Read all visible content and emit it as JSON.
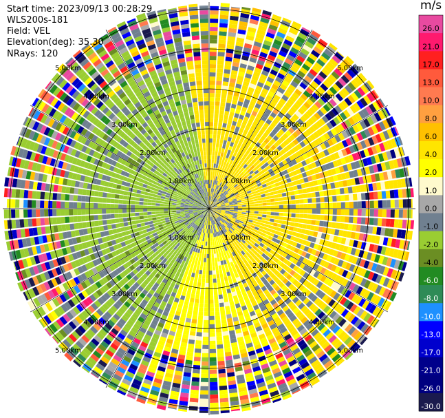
{
  "header": {
    "start_time": "Start time: 2023/09/13 00:28:29",
    "instrument": "WLS200s-181",
    "field": "Field: VEL",
    "elevation": "Elevation(deg): 35.30",
    "nrays": "NRays: 120"
  },
  "ppi": {
    "nrays": 120,
    "range_ring_labels": [
      "1.00km",
      "2.00km",
      "3.00km",
      "4.00km",
      "5.00km"
    ]
  },
  "colorbar": {
    "unit": "m/s",
    "levels": [
      {
        "label": "26.0",
        "color": "#e84aa0"
      },
      {
        "label": "21.0",
        "color": "#ff1a6e"
      },
      {
        "label": "17.0",
        "color": "#ff2020"
      },
      {
        "label": "13.0",
        "color": "#ff5a3c"
      },
      {
        "label": "10.0",
        "color": "#ff7a50"
      },
      {
        "label": "8.0",
        "color": "#ffa040"
      },
      {
        "label": "6.0",
        "color": "#ffc000"
      },
      {
        "label": "4.0",
        "color": "#ffe500"
      },
      {
        "label": "2.0",
        "color": "#ffff00"
      },
      {
        "label": "1.0",
        "color": "#fffacd"
      },
      {
        "label": "0.0",
        "color": "#a8a8a8"
      },
      {
        "label": "-1.0",
        "color": "#708090"
      },
      {
        "label": "-2.0",
        "color": "#9acd32"
      },
      {
        "label": "-4.0",
        "color": "#6b8e23"
      },
      {
        "label": "-6.0",
        "color": "#228b22"
      },
      {
        "label": "-8.0",
        "color": "#2e8b57"
      },
      {
        "label": "-10.0",
        "color": "#1e90ff"
      },
      {
        "label": "-13.0",
        "color": "#0000ff"
      },
      {
        "label": "-17.0",
        "color": "#0000cd"
      },
      {
        "label": "-21.0",
        "color": "#00008b"
      },
      {
        "label": "-26.0",
        "color": "#000080"
      },
      {
        "label": "-30.0",
        "color": "#1a1a4e"
      }
    ]
  },
  "colors": {
    "ring": "#000000",
    "background": "#ffffff"
  }
}
